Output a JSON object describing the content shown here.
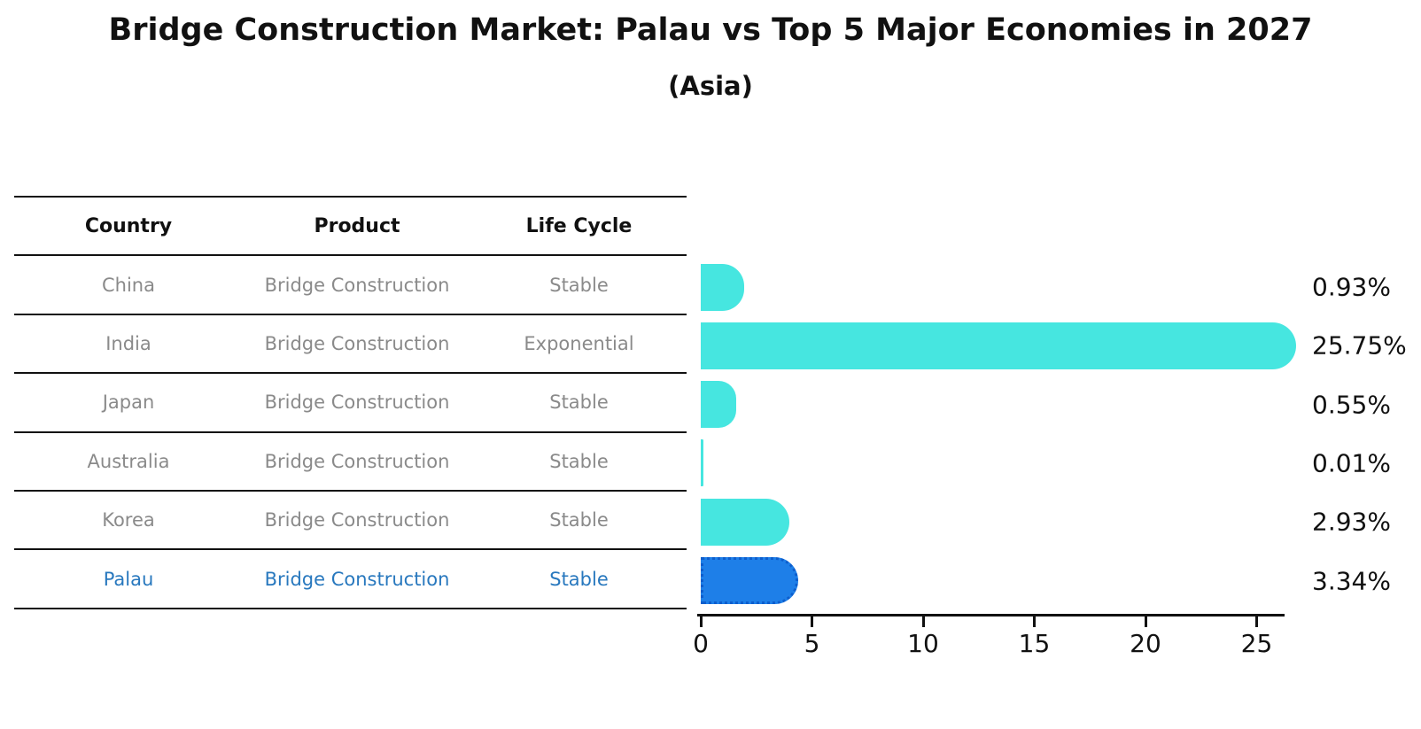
{
  "title": "Bridge Construction Market: Palau vs Top 5 Major Economies in 2027",
  "subtitle": "(Asia)",
  "table": {
    "columns": [
      "Country",
      "Product",
      "Life Cycle"
    ],
    "rows": [
      {
        "country": "China",
        "product": "Bridge Construction",
        "life_cycle": "Stable",
        "highlight": false
      },
      {
        "country": "India",
        "product": "Bridge Construction",
        "life_cycle": "Exponential",
        "highlight": false
      },
      {
        "country": "Japan",
        "product": "Bridge Construction",
        "life_cycle": "Stable",
        "highlight": false
      },
      {
        "country": "Australia",
        "product": "Bridge Construction",
        "life_cycle": "Stable",
        "highlight": false
      },
      {
        "country": "Korea",
        "product": "Bridge Construction",
        "life_cycle": "Stable",
        "highlight": false
      },
      {
        "country": "Palau",
        "product": "Bridge Construction",
        "life_cycle": "Stable",
        "highlight": true
      }
    ]
  },
  "chart_data": {
    "type": "bar",
    "orientation": "horizontal",
    "title": "Bridge Construction Market: Palau vs Top 5 Major Economies in 2027",
    "subtitle": "(Asia)",
    "categories": [
      "China",
      "India",
      "Japan",
      "Australia",
      "Korea",
      "Palau"
    ],
    "values": [
      0.93,
      25.75,
      0.55,
      0.01,
      2.93,
      3.34
    ],
    "value_labels": [
      "0.93%",
      "25.75%",
      "0.55%",
      "0.01%",
      "2.93%",
      "3.34%"
    ],
    "x_ticks": [
      0,
      5,
      10,
      15,
      20,
      25
    ],
    "xlim": [
      0,
      26.5
    ],
    "xlabel": "",
    "ylabel": "",
    "grid": false,
    "legend": "none",
    "highlight_index": 5
  },
  "colors": {
    "bar": "#46e6e0",
    "highlight_bar": "#1e7fe8",
    "highlight_border": "#0d5ecd",
    "highlight_text": "#2878be",
    "table_text": "#8a8a8a",
    "axis": "#111111"
  }
}
